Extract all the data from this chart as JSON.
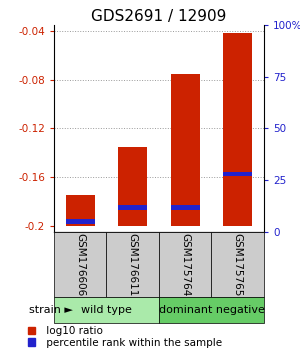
{
  "title": "GDS2691 / 12909",
  "samples": [
    "GSM176606",
    "GSM176611",
    "GSM175764",
    "GSM175765"
  ],
  "groups": [
    {
      "name": "wild type",
      "color": "#aaeaaa",
      "samples": [
        0,
        1
      ]
    },
    {
      "name": "dominant negative",
      "color": "#66cc66",
      "samples": [
        2,
        3
      ]
    }
  ],
  "log10_ratio": [
    -0.175,
    -0.135,
    -0.075,
    -0.042
  ],
  "percentile_rank": [
    5,
    12,
    12,
    28
  ],
  "bar_bottom": -0.2,
  "ylim_left": [
    -0.205,
    -0.035
  ],
  "ylim_right": [
    0,
    100
  ],
  "yticks_left": [
    -0.04,
    -0.08,
    -0.12,
    -0.16,
    -0.2
  ],
  "yticks_right": [
    0,
    25,
    50,
    75,
    100
  ],
  "ytick_labels_right": [
    "0",
    "25",
    "50",
    "75",
    "100%"
  ],
  "red_color": "#cc2200",
  "blue_color": "#2222cc",
  "bar_width": 0.55,
  "grid_color": "#999999",
  "label_fontsize": 7.5,
  "title_fontsize": 11,
  "group_label_fontsize": 8,
  "sample_fontsize": 7.5,
  "legend_fontsize": 7.5,
  "gray_color": "#cccccc"
}
